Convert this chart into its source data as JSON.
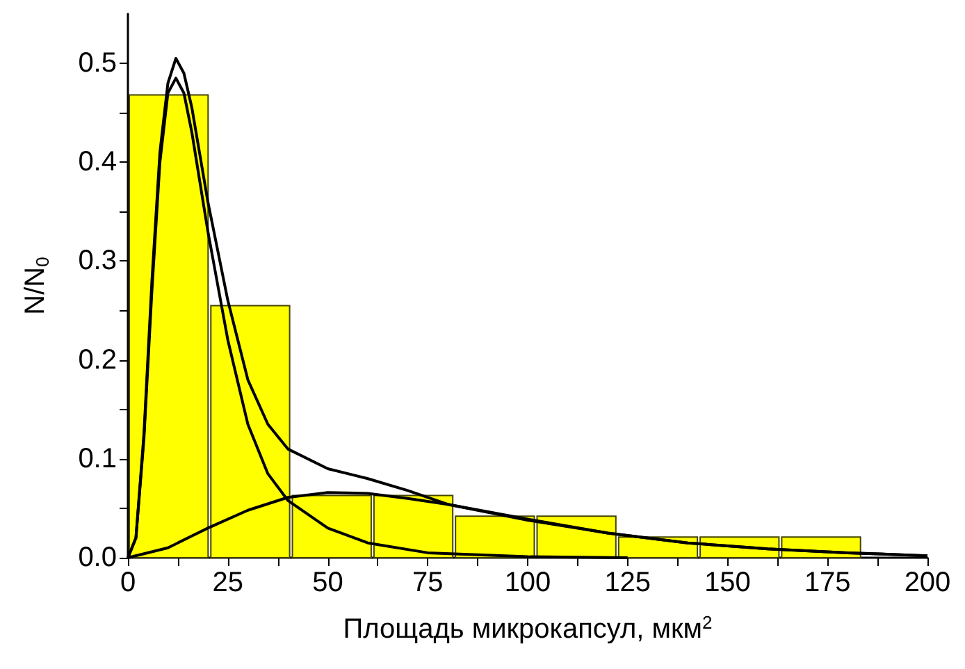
{
  "chart_data": {
    "type": "histogram",
    "xlabel": "Площадь микрокапсул, мкм$^{2}$",
    "ylabel": "N/N$_{0}$",
    "bins": [
      0,
      20.4,
      40.8,
      61.2,
      81.6,
      102,
      122.4,
      142.8,
      163.2,
      183.6
    ],
    "xlim": [
      0,
      200
    ],
    "xticks": [
      0,
      {
        "value": 12.5,
        "label": null
      },
      25,
      {
        "value": 37.5,
        "label": null
      },
      50,
      {
        "value": 62.5,
        "label": null
      },
      75,
      {
        "value": 87.5,
        "label": null
      },
      100,
      {
        "value": 112.5,
        "label": null
      },
      125,
      {
        "value": 137.5,
        "label": null
      },
      150,
      {
        "value": 162.5,
        "label": null
      },
      175,
      {
        "value": 187.5,
        "label": null
      },
      200
    ],
    "ylim": [
      0,
      0.55
    ],
    "yticks": [
      {
        "value": 0,
        "label": "0.0"
      },
      {
        "value": 0.05,
        "label": null
      },
      0.1,
      {
        "value": 0.15,
        "label": null
      },
      0.2,
      {
        "value": 0.25,
        "label": null
      },
      0.3,
      {
        "value": 0.35,
        "label": null
      },
      0.4,
      {
        "value": 0.45,
        "label": null
      },
      0.5
    ],
    "grid": false,
    "series": [
      {
        "color": "#ffff00",
        "values": [
          0.468,
          0.255,
          0.063,
          0.063,
          0.042,
          0.042,
          0.021,
          0.021,
          0.021
        ]
      },
      {
        "type": "line",
        "color": "#000000",
        "x": [
          0,
          2,
          4,
          6,
          8,
          10,
          12,
          14,
          16,
          18,
          20,
          25,
          30,
          35,
          40,
          50,
          60,
          75,
          100,
          125
        ],
        "values": [
          0,
          0.02,
          0.12,
          0.27,
          0.4,
          0.47,
          0.485,
          0.47,
          0.43,
          0.38,
          0.33,
          0.22,
          0.135,
          0.085,
          0.058,
          0.03,
          0.015,
          0.005,
          0.001,
          0
        ]
      },
      {
        "type": "line",
        "color": "#000000",
        "x": [
          0,
          10,
          20,
          30,
          40,
          50,
          60,
          70,
          80,
          100,
          120,
          140,
          160,
          180,
          200
        ],
        "values": [
          0,
          0.01,
          0.03,
          0.048,
          0.061,
          0.066,
          0.065,
          0.06,
          0.054,
          0.038,
          0.025,
          0.015,
          0.009,
          0.005,
          0.002
        ]
      },
      {
        "type": "line",
        "color": "#000000",
        "x": [
          0,
          2,
          4,
          6,
          8,
          10,
          12,
          14,
          16,
          20,
          25,
          30,
          35,
          40,
          50,
          60,
          70,
          80,
          100,
          120,
          140,
          160,
          180,
          200
        ],
        "values": [
          0,
          0.02,
          0.125,
          0.28,
          0.41,
          0.48,
          0.505,
          0.49,
          0.455,
          0.36,
          0.26,
          0.18,
          0.135,
          0.11,
          0.09,
          0.08,
          0.068,
          0.054,
          0.039,
          0.025,
          0.015,
          0.009,
          0.005,
          0.002
        ]
      }
    ]
  }
}
